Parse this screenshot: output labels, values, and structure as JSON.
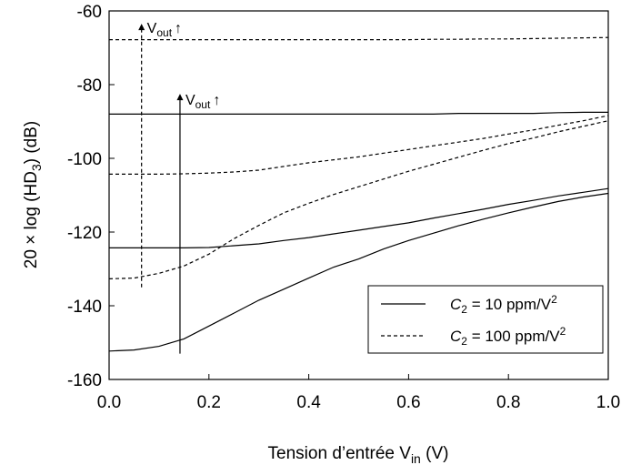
{
  "chart_data": {
    "type": "line",
    "title": "",
    "xlabel": {
      "main": "Tension d’entrée V",
      "sub": "in",
      "tail": " (V)"
    },
    "ylabel": {
      "main": "20 × log (HD",
      "sub": "3",
      "tail": ") (dB)"
    },
    "xlim": [
      0.0,
      1.0
    ],
    "ylim": [
      -160,
      -60
    ],
    "xticks": [
      "0.0",
      "0.2",
      "0.4",
      "0.6",
      "0.8",
      "1.0"
    ],
    "yticks": [
      "-60",
      "-80",
      "-100",
      "-120",
      "-140",
      "-160"
    ],
    "grid": false,
    "legend_placement": "bottom-right",
    "legend": [
      {
        "prefix": "C",
        "sub": "2",
        "suffix": " = 10 ppm/V",
        "sup": "2",
        "style": "solid"
      },
      {
        "prefix": "C",
        "sub": "2",
        "suffix": " = 100 ppm/V",
        "sup": "2",
        "style": "dashed"
      }
    ],
    "series": [
      {
        "name": "C2 = 10 ppm/V2",
        "style": "solid",
        "x": [
          0.0,
          0.05,
          0.1,
          0.15,
          0.2,
          0.25,
          0.3,
          0.35,
          0.4,
          0.45,
          0.5,
          0.55,
          0.6,
          0.65,
          0.7,
          0.75,
          0.8,
          0.85,
          0.9,
          0.95,
          1.0
        ],
        "y": [
          -88,
          -88,
          -88,
          -88,
          -88,
          -88,
          -88,
          -88,
          -88,
          -88,
          -88,
          -88,
          -88,
          -88,
          -87.8,
          -87.8,
          -87.8,
          -87.8,
          -87.6,
          -87.5,
          -87.5
        ]
      },
      {
        "name": "C2 = 10 ppm/V2",
        "style": "solid",
        "x": [
          0.0,
          0.05,
          0.1,
          0.15,
          0.2,
          0.25,
          0.3,
          0.35,
          0.4,
          0.45,
          0.5,
          0.55,
          0.6,
          0.65,
          0.7,
          0.75,
          0.8,
          0.85,
          0.9,
          0.95,
          1.0
        ],
        "y": [
          -124.3,
          -124.3,
          -124.3,
          -124.3,
          -124.2,
          -123.7,
          -123.2,
          -122.3,
          -121.5,
          -120.5,
          -119.5,
          -118.5,
          -117.5,
          -116.2,
          -115,
          -113.8,
          -112.5,
          -111.4,
          -110.2,
          -109.2,
          -108.2
        ]
      },
      {
        "name": "C2 = 10 ppm/V2",
        "style": "solid",
        "x": [
          0.0,
          0.05,
          0.1,
          0.15,
          0.2,
          0.25,
          0.3,
          0.35,
          0.4,
          0.45,
          0.5,
          0.55,
          0.6,
          0.65,
          0.7,
          0.75,
          0.8,
          0.85,
          0.9,
          0.95,
          1.0
        ],
        "y": [
          -152.3,
          -152,
          -151,
          -149,
          -145.5,
          -142,
          -138.5,
          -135.5,
          -132.5,
          -129.5,
          -127.3,
          -124.6,
          -122.3,
          -120.3,
          -118.3,
          -116.5,
          -114.8,
          -113.2,
          -111.7,
          -110.5,
          -109.5
        ]
      },
      {
        "name": "C2 = 100 ppm/V2",
        "style": "dashed",
        "x": [
          0.0,
          0.05,
          0.1,
          0.15,
          0.2,
          0.25,
          0.3,
          0.35,
          0.4,
          0.45,
          0.5,
          0.55,
          0.6,
          0.65,
          0.7,
          0.75,
          0.8,
          0.85,
          0.9,
          0.95,
          1.0
        ],
        "y": [
          -67.8,
          -67.8,
          -67.8,
          -67.8,
          -67.8,
          -67.8,
          -67.8,
          -67.8,
          -67.8,
          -67.8,
          -67.8,
          -67.8,
          -67.8,
          -67.7,
          -67.7,
          -67.6,
          -67.6,
          -67.5,
          -67.4,
          -67.3,
          -67.2
        ]
      },
      {
        "name": "C2 = 100 ppm/V2",
        "style": "dashed",
        "x": [
          0.0,
          0.05,
          0.1,
          0.15,
          0.2,
          0.25,
          0.3,
          0.35,
          0.4,
          0.45,
          0.5,
          0.55,
          0.6,
          0.65,
          0.7,
          0.75,
          0.8,
          0.85,
          0.9,
          0.95,
          1.0
        ],
        "y": [
          -104.3,
          -104.3,
          -104.3,
          -104.2,
          -104,
          -103.7,
          -103.2,
          -102.2,
          -101.2,
          -100.4,
          -99.6,
          -98.6,
          -97.6,
          -96.6,
          -95.6,
          -94.6,
          -93.4,
          -92.3,
          -91,
          -89.8,
          -88.4
        ]
      },
      {
        "name": "C2 = 100 ppm/V2",
        "style": "dashed",
        "x": [
          0.0,
          0.05,
          0.1,
          0.15,
          0.2,
          0.25,
          0.3,
          0.35,
          0.4,
          0.45,
          0.5,
          0.55,
          0.6,
          0.65,
          0.7,
          0.75,
          0.8,
          0.85,
          0.9,
          0.95,
          1.0
        ],
        "y": [
          -132.7,
          -132.5,
          -131.2,
          -129.2,
          -126,
          -121.8,
          -118.2,
          -114.8,
          -112.2,
          -109.8,
          -107.7,
          -105.6,
          -103.5,
          -101.6,
          -99.7,
          -97.8,
          -96,
          -94.5,
          -92.8,
          -91.3,
          -89.8
        ]
      }
    ],
    "annotations": [
      {
        "text": "V",
        "sub": "out",
        "arrow": "↑",
        "style": "dashed",
        "x": 0.065,
        "y_from": -135,
        "y_to": -63.5,
        "label_y": -63.5
      },
      {
        "text": "V",
        "sub": "out",
        "arrow": "↑",
        "style": "solid",
        "x": 0.142,
        "y_from": -153,
        "y_to": -82.5,
        "label_y": -83
      }
    ]
  }
}
